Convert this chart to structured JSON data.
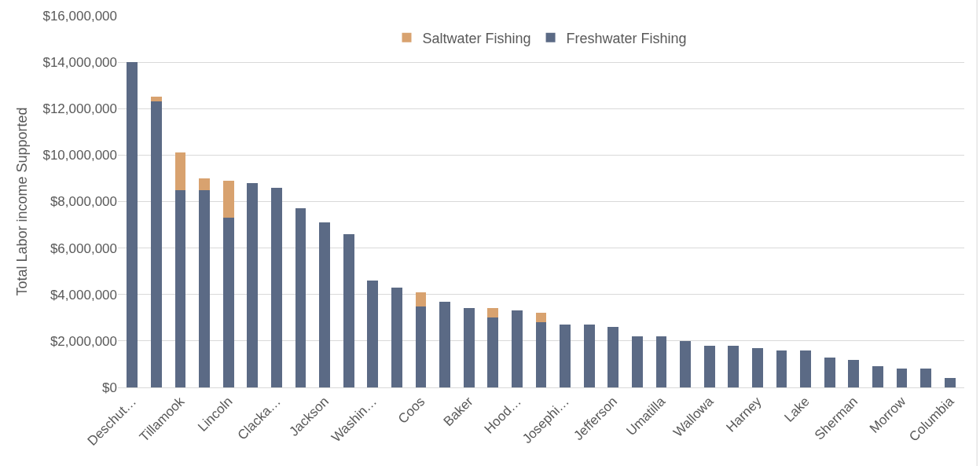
{
  "chart_data": {
    "type": "bar",
    "stacked": true,
    "ylabel": "Total Labor income Supported",
    "categories": [
      "Deschut…",
      null,
      "Tillamook",
      null,
      "Lincoln",
      null,
      "Clacka…",
      null,
      "Jackson",
      null,
      "Washin…",
      null,
      "Coos",
      null,
      "Baker",
      null,
      "Hood…",
      null,
      "Josephi…",
      null,
      "Jefferson",
      null,
      "Umatilla",
      null,
      "Wallowa",
      null,
      "Harney",
      null,
      "Lake",
      null,
      "Sherman",
      null,
      "Morrow",
      null,
      "Columbia"
    ],
    "series": [
      {
        "name": "Freshwater Fishing",
        "color": "#5b6a85",
        "values": [
          14000000,
          12300000,
          8500000,
          8500000,
          7300000,
          8800000,
          8600000,
          7700000,
          7100000,
          6600000,
          4600000,
          4300000,
          3500000,
          3700000,
          3400000,
          3000000,
          3300000,
          2800000,
          2700000,
          2700000,
          2600000,
          2200000,
          2200000,
          2000000,
          1800000,
          1800000,
          1700000,
          1600000,
          1600000,
          1300000,
          1200000,
          900000,
          800000,
          800000,
          400000
        ]
      },
      {
        "name": "Saltwater Fishing",
        "color": "#d8a26f",
        "values": [
          0,
          200000,
          1600000,
          500000,
          1600000,
          0,
          0,
          0,
          0,
          0,
          0,
          0,
          600000,
          0,
          0,
          400000,
          0,
          400000,
          0,
          0,
          0,
          0,
          0,
          0,
          0,
          0,
          0,
          0,
          0,
          0,
          0,
          0,
          0,
          0,
          0
        ]
      }
    ],
    "ylim": [
      0,
      16000000
    ],
    "yticks": [
      {
        "value": 0,
        "label": "$0"
      },
      {
        "value": 2000000,
        "label": "$2,000,000"
      },
      {
        "value": 4000000,
        "label": "$4,000,000"
      },
      {
        "value": 6000000,
        "label": "$6,000,000"
      },
      {
        "value": 8000000,
        "label": "$8,000,000"
      },
      {
        "value": 10000000,
        "label": "$10,000,000"
      },
      {
        "value": 12000000,
        "label": "$12,000,000"
      },
      {
        "value": 14000000,
        "label": "$14,000,000"
      },
      {
        "value": 16000000,
        "label": "$16,000,000"
      }
    ],
    "grid": "y",
    "legend": "top"
  }
}
